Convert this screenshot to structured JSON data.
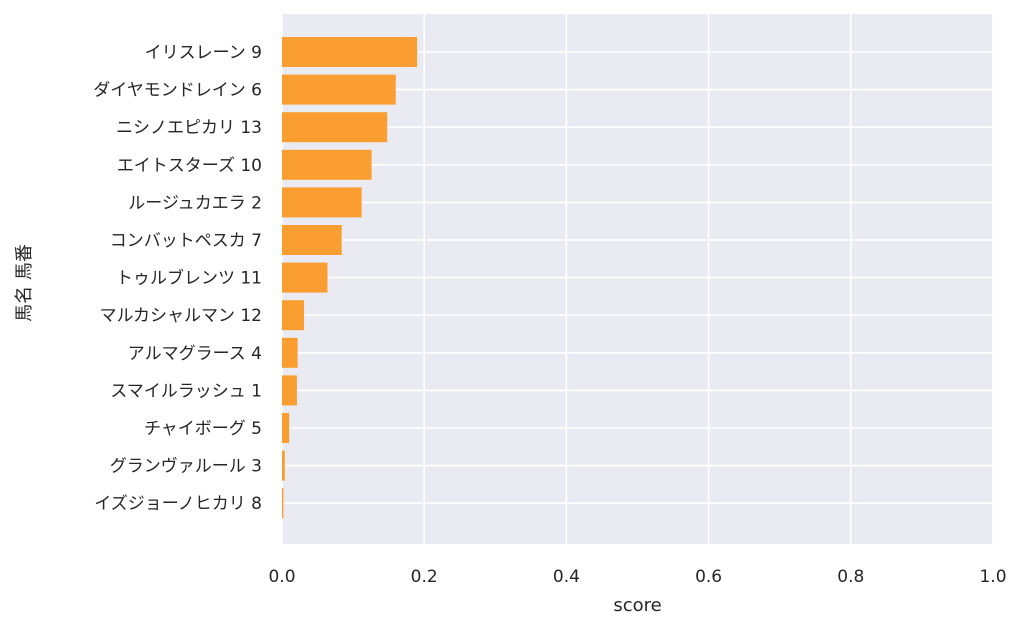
{
  "chart_data": {
    "type": "bar",
    "orientation": "horizontal",
    "categories": [
      "イリスレーン 9",
      "ダイヤモンドレイン 6",
      "ニシノエピカリ 13",
      "エイトスターズ 10",
      "ルージュカエラ 2",
      "コンバットペスカ 7",
      "トゥルブレンツ 11",
      "マルカシャルマン 12",
      "アルマグラース 4",
      "スマイルラッシュ 1",
      "チャイボーグ 5",
      "グランヴァルール 3",
      "イズジョーノヒカリ 8"
    ],
    "values": [
      0.19,
      0.16,
      0.148,
      0.126,
      0.112,
      0.084,
      0.064,
      0.031,
      0.022,
      0.021,
      0.01,
      0.004,
      0.002
    ],
    "xlabel": "score",
    "ylabel": "馬名 馬番",
    "xlim": [
      0,
      1.0
    ],
    "xticks": [
      "0.0",
      "0.2",
      "0.4",
      "0.6",
      "0.8",
      "1.0"
    ],
    "grid": true,
    "bar_color": "#fb9e31",
    "plot_background": "#eaeaf2",
    "grid_color": "#ffffff"
  }
}
